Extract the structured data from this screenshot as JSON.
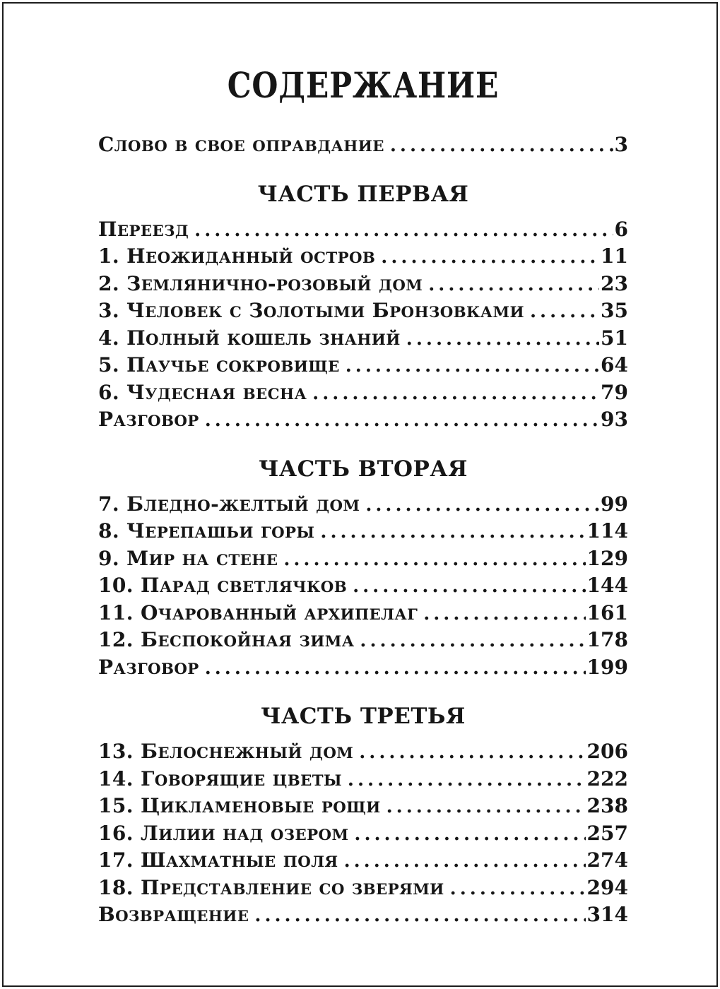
{
  "toc": {
    "title": "СОДЕРЖАНИЕ",
    "front_matter": [
      {
        "label": "Слово в свое оправдание",
        "page": "3"
      }
    ],
    "parts": [
      {
        "heading": "ЧАСТЬ ПЕРВАЯ",
        "entries": [
          {
            "label": "Переезд",
            "page": "6"
          },
          {
            "label": "1. Неожиданный остров",
            "page": "11"
          },
          {
            "label": "2. Землянично-розовый дом",
            "page": "23"
          },
          {
            "label": "3. Человек с Золотыми Бронзовками",
            "page": "35"
          },
          {
            "label": "4. Полный кошель знаний",
            "page": "51"
          },
          {
            "label": "5. Паучье сокровище",
            "page": "64"
          },
          {
            "label": "6. Чудесная весна",
            "page": "79"
          },
          {
            "label": "Разговор",
            "page": "93"
          }
        ]
      },
      {
        "heading": "ЧАСТЬ ВТОРАЯ",
        "entries": [
          {
            "label": "7. Бледно-желтый дом",
            "page": "99"
          },
          {
            "label": "8. Черепашьи горы",
            "page": "114"
          },
          {
            "label": "9. Мир на стене",
            "page": "129"
          },
          {
            "label": "10. Парад светлячков",
            "page": "144"
          },
          {
            "label": "11. Очарованный архипелаг",
            "page": "161"
          },
          {
            "label": "12. Беспокойная зима",
            "page": "178"
          },
          {
            "label": "Разговор",
            "page": "199"
          }
        ]
      },
      {
        "heading": "ЧАСТЬ ТРЕТЬЯ",
        "entries": [
          {
            "label": "13. Белоснежный дом",
            "page": "206"
          },
          {
            "label": "14. Говорящие цветы",
            "page": "222"
          },
          {
            "label": "15. Цикламеновые рощи",
            "page": "238"
          },
          {
            "label": "16. Лилии над озером",
            "page": "257"
          },
          {
            "label": "17. Шахматные поля",
            "page": "274"
          },
          {
            "label": "18. Представление со зверями",
            "page": "294"
          },
          {
            "label": "Возвращение",
            "page": "314"
          }
        ]
      }
    ],
    "ink_color": "#161616",
    "paper_color": "#ffffff"
  }
}
